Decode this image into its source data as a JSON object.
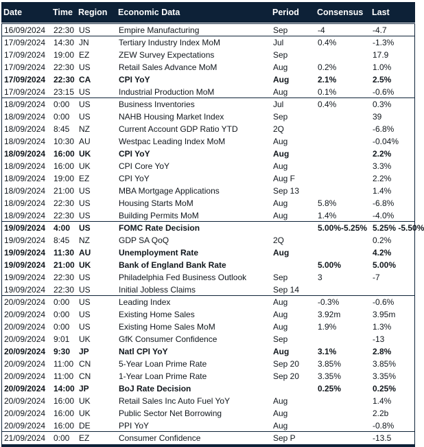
{
  "chart_data": {
    "type": "table",
    "colors": {
      "header_bg": "#0d2137",
      "header_text": "#ffffff",
      "body_text": "#10161c",
      "border": "#0d2137",
      "row_bg": "#ffffff"
    },
    "columns": [
      {
        "key": "date",
        "label": "Date"
      },
      {
        "key": "time",
        "label": "Time"
      },
      {
        "key": "region",
        "label": "Region"
      },
      {
        "key": "event",
        "label": "Economic Data"
      },
      {
        "key": "period",
        "label": "Period"
      },
      {
        "key": "consensus",
        "label": "Consensus"
      },
      {
        "key": "last",
        "label": "Last"
      }
    ],
    "rows": [
      {
        "date": "16/09/2024",
        "time": "22:30",
        "region": "US",
        "event": "Empire Manufacturing",
        "period": "Sep",
        "consensus": "-4",
        "last": "-4.7",
        "bold": false,
        "group_end": true
      },
      {
        "date": "17/09/2024",
        "time": "14:30",
        "region": "JN",
        "event": "Tertiary Industry Index MoM",
        "period": "Jul",
        "consensus": "0.4%",
        "last": "-1.3%",
        "bold": false,
        "group_end": false
      },
      {
        "date": "17/09/2024",
        "time": "19:00",
        "region": "EZ",
        "event": "ZEW Survey Expectations",
        "period": "Sep",
        "consensus": "",
        "last": "17.9",
        "bold": false,
        "group_end": false
      },
      {
        "date": "17/09/2024",
        "time": "22:30",
        "region": "US",
        "event": "Retail Sales Advance MoM",
        "period": "Aug",
        "consensus": "0.2%",
        "last": "1.0%",
        "bold": false,
        "group_end": false
      },
      {
        "date": "17/09/2024",
        "time": "22:30",
        "region": "CA",
        "event": "CPI YoY",
        "period": "Aug",
        "consensus": "2.1%",
        "last": "2.5%",
        "bold": true,
        "group_end": false
      },
      {
        "date": "17/09/2024",
        "time": "23:15",
        "region": "US",
        "event": "Industrial Production MoM",
        "period": "Aug",
        "consensus": "0.1%",
        "last": "-0.6%",
        "bold": false,
        "group_end": true
      },
      {
        "date": "18/09/2024",
        "time": "0:00",
        "region": "US",
        "event": "Business Inventories",
        "period": "Jul",
        "consensus": "0.4%",
        "last": "0.3%",
        "bold": false,
        "group_end": false
      },
      {
        "date": "18/09/2024",
        "time": "0:00",
        "region": "US",
        "event": "NAHB Housing Market Index",
        "period": "Sep",
        "consensus": "",
        "last": "39",
        "bold": false,
        "group_end": false
      },
      {
        "date": "18/09/2024",
        "time": "8:45",
        "region": "NZ",
        "event": "Current Account GDP Ratio YTD",
        "period": "2Q",
        "consensus": "",
        "last": "-6.8%",
        "bold": false,
        "group_end": false
      },
      {
        "date": "18/09/2024",
        "time": "10:30",
        "region": "AU",
        "event": "Westpac Leading Index MoM",
        "period": "Aug",
        "consensus": "",
        "last": "-0.04%",
        "bold": false,
        "group_end": false
      },
      {
        "date": "18/09/2024",
        "time": "16:00",
        "region": "UK",
        "event": "CPI YoY",
        "period": "Aug",
        "consensus": "",
        "last": "2.2%",
        "bold": true,
        "group_end": false
      },
      {
        "date": "18/09/2024",
        "time": "16:00",
        "region": "UK",
        "event": "CPI Core YoY",
        "period": "Aug",
        "consensus": "",
        "last": "3.3%",
        "bold": false,
        "group_end": false
      },
      {
        "date": "18/09/2024",
        "time": "19:00",
        "region": "EZ",
        "event": "CPI YoY",
        "period": "Aug F",
        "consensus": "",
        "last": "2.2%",
        "bold": false,
        "group_end": false
      },
      {
        "date": "18/09/2024",
        "time": "21:00",
        "region": "US",
        "event": "MBA Mortgage Applications",
        "period": "Sep 13",
        "consensus": "",
        "last": "1.4%",
        "bold": false,
        "group_end": false
      },
      {
        "date": "18/09/2024",
        "time": "22:30",
        "region": "US",
        "event": "Housing Starts MoM",
        "period": "Aug",
        "consensus": "5.8%",
        "last": "-6.8%",
        "bold": false,
        "group_end": false
      },
      {
        "date": "18/09/2024",
        "time": "22:30",
        "region": "US",
        "event": "Building Permits MoM",
        "period": "Aug",
        "consensus": "1.4%",
        "last": "-4.0%",
        "bold": false,
        "group_end": true
      },
      {
        "date": "19/09/2024",
        "time": "4:00",
        "region": "US",
        "event": "FOMC Rate Decision",
        "period": "",
        "consensus": "5.00%-5.25%",
        "last": "5.25% -5.50%",
        "bold": true,
        "group_end": false
      },
      {
        "date": "19/09/2024",
        "time": "8:45",
        "region": "NZ",
        "event": "GDP SA QoQ",
        "period": "2Q",
        "consensus": "",
        "last": "0.2%",
        "bold": false,
        "group_end": false
      },
      {
        "date": "19/09/2024",
        "time": "11:30",
        "region": "AU",
        "event": "Unemployment Rate",
        "period": "Aug",
        "consensus": "",
        "last": "4.2%",
        "bold": true,
        "group_end": false
      },
      {
        "date": "19/09/2024",
        "time": "21:00",
        "region": "UK",
        "event": "Bank of England Bank Rate",
        "period": "",
        "consensus": "5.00%",
        "last": "5.00%",
        "bold": true,
        "group_end": false
      },
      {
        "date": "19/09/2024",
        "time": "22:30",
        "region": "US",
        "event": "Philadelphia Fed Business Outlook",
        "period": "Sep",
        "consensus": "3",
        "last": "-7",
        "bold": false,
        "group_end": false
      },
      {
        "date": "19/09/2024",
        "time": "22:30",
        "region": "US",
        "event": "Initial Jobless Claims",
        "period": "Sep 14",
        "consensus": "",
        "last": "",
        "bold": false,
        "group_end": true
      },
      {
        "date": "20/09/2024",
        "time": "0:00",
        "region": "US",
        "event": "Leading Index",
        "period": "Aug",
        "consensus": "-0.3%",
        "last": "-0.6%",
        "bold": false,
        "group_end": false
      },
      {
        "date": "20/09/2024",
        "time": "0:00",
        "region": "US",
        "event": "Existing Home Sales",
        "period": "Aug",
        "consensus": "3.92m",
        "last": "3.95m",
        "bold": false,
        "group_end": false
      },
      {
        "date": "20/09/2024",
        "time": "0:00",
        "region": "US",
        "event": "Existing Home Sales MoM",
        "period": "Aug",
        "consensus": "1.9%",
        "last": "1.3%",
        "bold": false,
        "group_end": false
      },
      {
        "date": "20/09/2024",
        "time": "9:01",
        "region": "UK",
        "event": "GfK Consumer Confidence",
        "period": "Sep",
        "consensus": "",
        "last": "-13",
        "bold": false,
        "group_end": false
      },
      {
        "date": "20/09/2024",
        "time": "9:30",
        "region": "JP",
        "event": "Natl CPI YoY",
        "period": "Aug",
        "consensus": "3.1%",
        "last": "2.8%",
        "bold": true,
        "group_end": false
      },
      {
        "date": "20/09/2024",
        "time": "11:00",
        "region": "CN",
        "event": "5-Year Loan Prime Rate",
        "period": "Sep 20",
        "consensus": "3.85%",
        "last": "3.85%",
        "bold": false,
        "group_end": false
      },
      {
        "date": "20/09/2024",
        "time": "11:00",
        "region": "CN",
        "event": "1-Year Loan Prime Rate",
        "period": "Sep 20",
        "consensus": "3.35%",
        "last": "3.35%",
        "bold": false,
        "group_end": false
      },
      {
        "date": "20/09/2024",
        "time": "14:00",
        "region": "JP",
        "event": "BoJ Rate Decision",
        "period": "",
        "consensus": "0.25%",
        "last": "0.25%",
        "bold": true,
        "group_end": false
      },
      {
        "date": "20/09/2024",
        "time": "16:00",
        "region": "UK",
        "event": "Retail Sales Inc Auto Fuel YoY",
        "period": "Aug",
        "consensus": "",
        "last": "1.4%",
        "bold": false,
        "group_end": false
      },
      {
        "date": "20/09/2024",
        "time": "16:00",
        "region": "UK",
        "event": "Public Sector Net Borrowing",
        "period": "Aug",
        "consensus": "",
        "last": "2.2b",
        "bold": false,
        "group_end": false
      },
      {
        "date": "20/09/2024",
        "time": "16:00",
        "region": "DE",
        "event": "PPI YoY",
        "period": "Aug",
        "consensus": "",
        "last": "-0.8%",
        "bold": false,
        "group_end": true
      },
      {
        "date": "21/09/2024",
        "time": "0:00",
        "region": "EZ",
        "event": "Consumer Confidence",
        "period": "Sep P",
        "consensus": "",
        "last": "-13.5",
        "bold": false,
        "group_end": false
      }
    ]
  }
}
